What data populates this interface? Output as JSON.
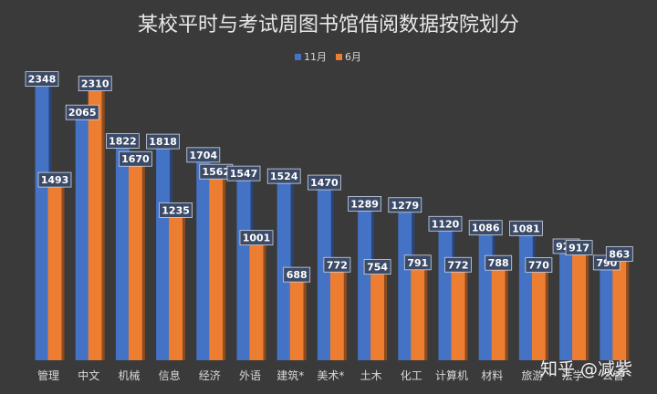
{
  "chart_data": {
    "type": "bar",
    "title": "某校平时与考试周图书馆借阅数据按院划分",
    "categories": [
      "管理",
      "中文",
      "机械",
      "信息",
      "经济",
      "外语",
      "建筑*",
      "美术*",
      "土木",
      "化工",
      "计算机",
      "材料",
      "旅游",
      "法学",
      "公管"
    ],
    "series": [
      {
        "name": "11月",
        "color": "#4472c4",
        "values": [
          2348,
          2065,
          1822,
          1818,
          1704,
          1547,
          1524,
          1470,
          1289,
          1279,
          1120,
          1086,
          1081,
          929,
          790
        ]
      },
      {
        "name": "6月",
        "color": "#ed7d31",
        "values": [
          1493,
          2310,
          1670,
          1235,
          1562,
          1001,
          688,
          772,
          754,
          791,
          772,
          788,
          770,
          917,
          863
        ]
      }
    ],
    "ylim": [
      0,
      2500
    ],
    "grid": false,
    "legend_position": "top-center",
    "data_labels": true
  },
  "watermark": "知乎 @减紫",
  "colors": {
    "background": "#3a3a3a",
    "text": "#d8d8d8",
    "label_box": "#3b4a66"
  }
}
